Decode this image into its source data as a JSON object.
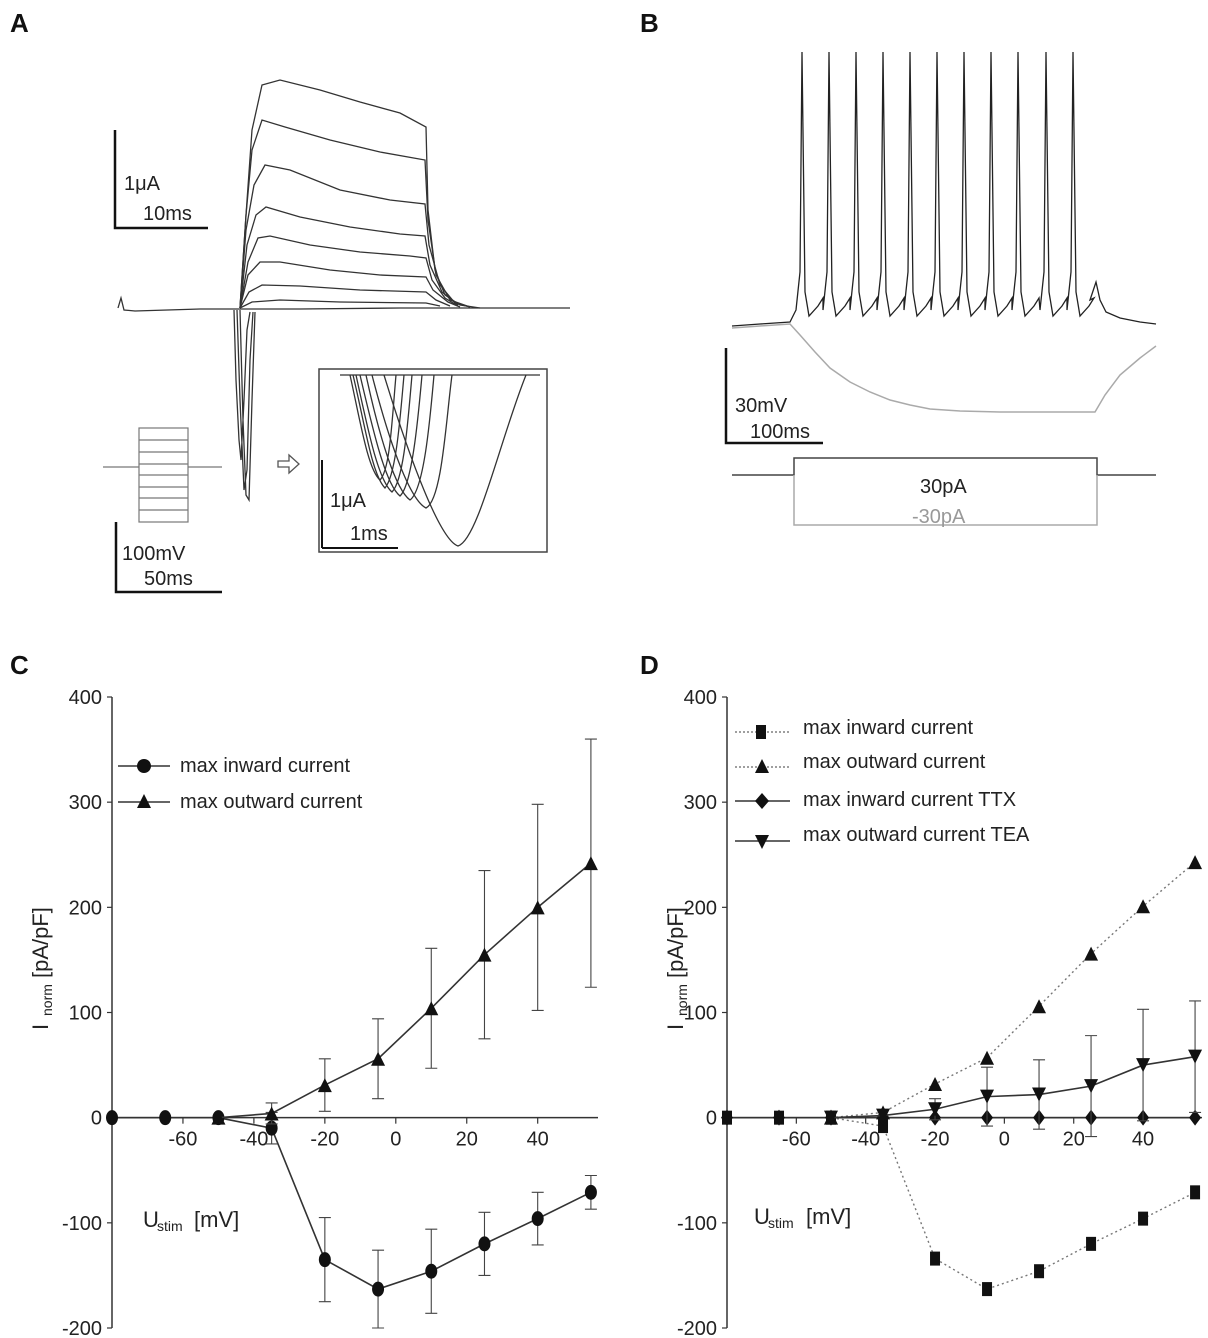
{
  "panels": {
    "A": {
      "letter": "A",
      "scalebar_current": "1μA",
      "scalebar_time": "10ms",
      "protocol_voltage": "100mV",
      "protocol_time": "50ms",
      "inset_current": "1μA",
      "inset_time": "1ms"
    },
    "B": {
      "letter": "B",
      "scalebar_voltage": "30mV",
      "scalebar_time": "100ms",
      "stim_pos_label": "30pA",
      "stim_neg_label": "-30pA",
      "color_pos": "#222222",
      "color_neg": "#aaaaaa"
    },
    "C": {
      "letter": "C",
      "y_label_main": "I",
      "y_label_sub": "norm",
      "y_label_unit": "[pA/pF]",
      "x_label_main": "U",
      "x_label_sub": "stim",
      "x_label_unit": "[mV]",
      "legend": [
        "max inward current",
        "max outward current"
      ]
    },
    "D": {
      "letter": "D",
      "y_label_main": "I",
      "y_label_sub": "norm",
      "y_label_unit": "[pA/pF]",
      "x_label_main": "U",
      "x_label_sub": "stim",
      "x_label_unit": "[mV]",
      "legend": [
        "max inward current",
        "max outward current",
        "max inward current TTX",
        "max outward current TEA"
      ]
    }
  },
  "chart_data": [
    {
      "panel": "C",
      "type": "line",
      "xlim": [
        -80,
        57
      ],
      "ylim": [
        -200,
        400
      ],
      "xticks": [
        -60,
        -40,
        -20,
        0,
        20,
        40
      ],
      "yticks": [
        -200,
        -100,
        0,
        100,
        200,
        300,
        400
      ],
      "series": [
        {
          "name": "max inward current",
          "marker": "circle",
          "style": "solid",
          "x": [
            -80,
            -65,
            -50,
            -35,
            -20,
            -5,
            10,
            25,
            40,
            55
          ],
          "y": [
            0,
            0,
            0,
            -10,
            -135,
            -163,
            -146,
            -120,
            -96,
            -71
          ],
          "err": [
            0,
            0,
            0,
            15,
            40,
            37,
            40,
            30,
            25,
            16
          ]
        },
        {
          "name": "max outward current",
          "marker": "triangle",
          "style": "solid",
          "x": [
            -50,
            -35,
            -20,
            -5,
            10,
            25,
            40,
            55
          ],
          "y": [
            0,
            4,
            31,
            56,
            104,
            155,
            200,
            242
          ],
          "err": [
            0,
            10,
            25,
            38,
            57,
            80,
            98,
            118
          ]
        }
      ]
    },
    {
      "panel": "D",
      "type": "line",
      "xlim": [
        -80,
        57
      ],
      "ylim": [
        -200,
        400
      ],
      "xticks": [
        -60,
        -40,
        -20,
        0,
        20,
        40
      ],
      "yticks": [
        -200,
        -100,
        0,
        100,
        200,
        300,
        400
      ],
      "series": [
        {
          "name": "max inward current",
          "marker": "square",
          "style": "dotted",
          "x": [
            -80,
            -65,
            -50,
            -35,
            -20,
            -5,
            10,
            25,
            40,
            55
          ],
          "y": [
            0,
            0,
            0,
            -8,
            -134,
            -163,
            -146,
            -120,
            -96,
            -71
          ],
          "err": [
            0,
            0,
            0,
            0,
            0,
            0,
            0,
            0,
            0,
            0
          ]
        },
        {
          "name": "max outward current",
          "marker": "triangle",
          "style": "dotted",
          "x": [
            -50,
            -35,
            -20,
            -5,
            10,
            25,
            40,
            55
          ],
          "y": [
            0,
            5,
            32,
            57,
            106,
            156,
            201,
            243
          ],
          "err": [
            0,
            0,
            0,
            0,
            0,
            0,
            0,
            0
          ]
        },
        {
          "name": "max inward current TTX",
          "marker": "diamond",
          "style": "solid",
          "x": [
            -80,
            -65,
            -50,
            -35,
            -20,
            -5,
            10,
            25,
            40,
            55
          ],
          "y": [
            0,
            0,
            0,
            0,
            0,
            0,
            0,
            0,
            0,
            0
          ],
          "err": [
            0,
            0,
            0,
            0,
            0,
            0,
            0,
            0,
            0,
            0
          ]
        },
        {
          "name": "max outward current TEA",
          "marker": "triangle-down",
          "style": "solid",
          "x": [
            -50,
            -35,
            -20,
            -5,
            10,
            25,
            40,
            55
          ],
          "y": [
            0,
            2,
            8,
            20,
            22,
            30,
            50,
            58
          ],
          "err": [
            0,
            0,
            10,
            28,
            33,
            48,
            53,
            53
          ]
        }
      ]
    }
  ]
}
